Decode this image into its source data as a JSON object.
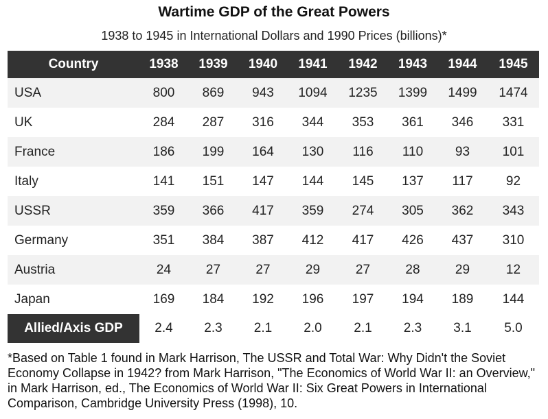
{
  "title": "Wartime GDP of the Great Powers",
  "subtitle": "1938 to 1945 in International Dollars and 1990 Prices (billions)*",
  "table": {
    "header_country": "Country",
    "years": [
      "1938",
      "1939",
      "1940",
      "1941",
      "1942",
      "1943",
      "1944",
      "1945"
    ],
    "rows": [
      {
        "country": "USA",
        "values": [
          "800",
          "869",
          "943",
          "1094",
          "1235",
          "1399",
          "1499",
          "1474"
        ]
      },
      {
        "country": "UK",
        "values": [
          "284",
          "287",
          "316",
          "344",
          "353",
          "361",
          "346",
          "331"
        ]
      },
      {
        "country": "France",
        "values": [
          "186",
          "199",
          "164",
          "130",
          "116",
          "110",
          "93",
          "101"
        ]
      },
      {
        "country": "Italy",
        "values": [
          "141",
          "151",
          "147",
          "144",
          "145",
          "137",
          "117",
          "92"
        ]
      },
      {
        "country": "USSR",
        "values": [
          "359",
          "366",
          "417",
          "359",
          "274",
          "305",
          "362",
          "343"
        ]
      },
      {
        "country": "Germany",
        "values": [
          "351",
          "384",
          "387",
          "412",
          "417",
          "426",
          "437",
          "310"
        ]
      },
      {
        "country": "Austria",
        "values": [
          "24",
          "27",
          "27",
          "29",
          "27",
          "28",
          "29",
          "12"
        ]
      },
      {
        "country": "Japan",
        "values": [
          "169",
          "184",
          "192",
          "196",
          "197",
          "194",
          "189",
          "144"
        ]
      }
    ],
    "ratio_row": {
      "label": "Allied/Axis GDP",
      "values": [
        "2.4",
        "2.3",
        "2.1",
        "2.0",
        "2.1",
        "2.3",
        "3.1",
        "5.0"
      ]
    }
  },
  "footnote": "*Based on Table 1 found in Mark Harrison, The USSR and Total War: Why Didn't the Soviet Economy Collapse in 1942? from Mark Harrison, \"The Economics of World War II: an Overview,\" in Mark Harrison, ed., The Economics of World War II: Six Great Powers in International Comparison, Cambridge University Press (1998), 10.",
  "colors": {
    "header_bg": "#333333",
    "header_text": "#ffffff",
    "alt_row_bg": "#f2f2f2"
  }
}
